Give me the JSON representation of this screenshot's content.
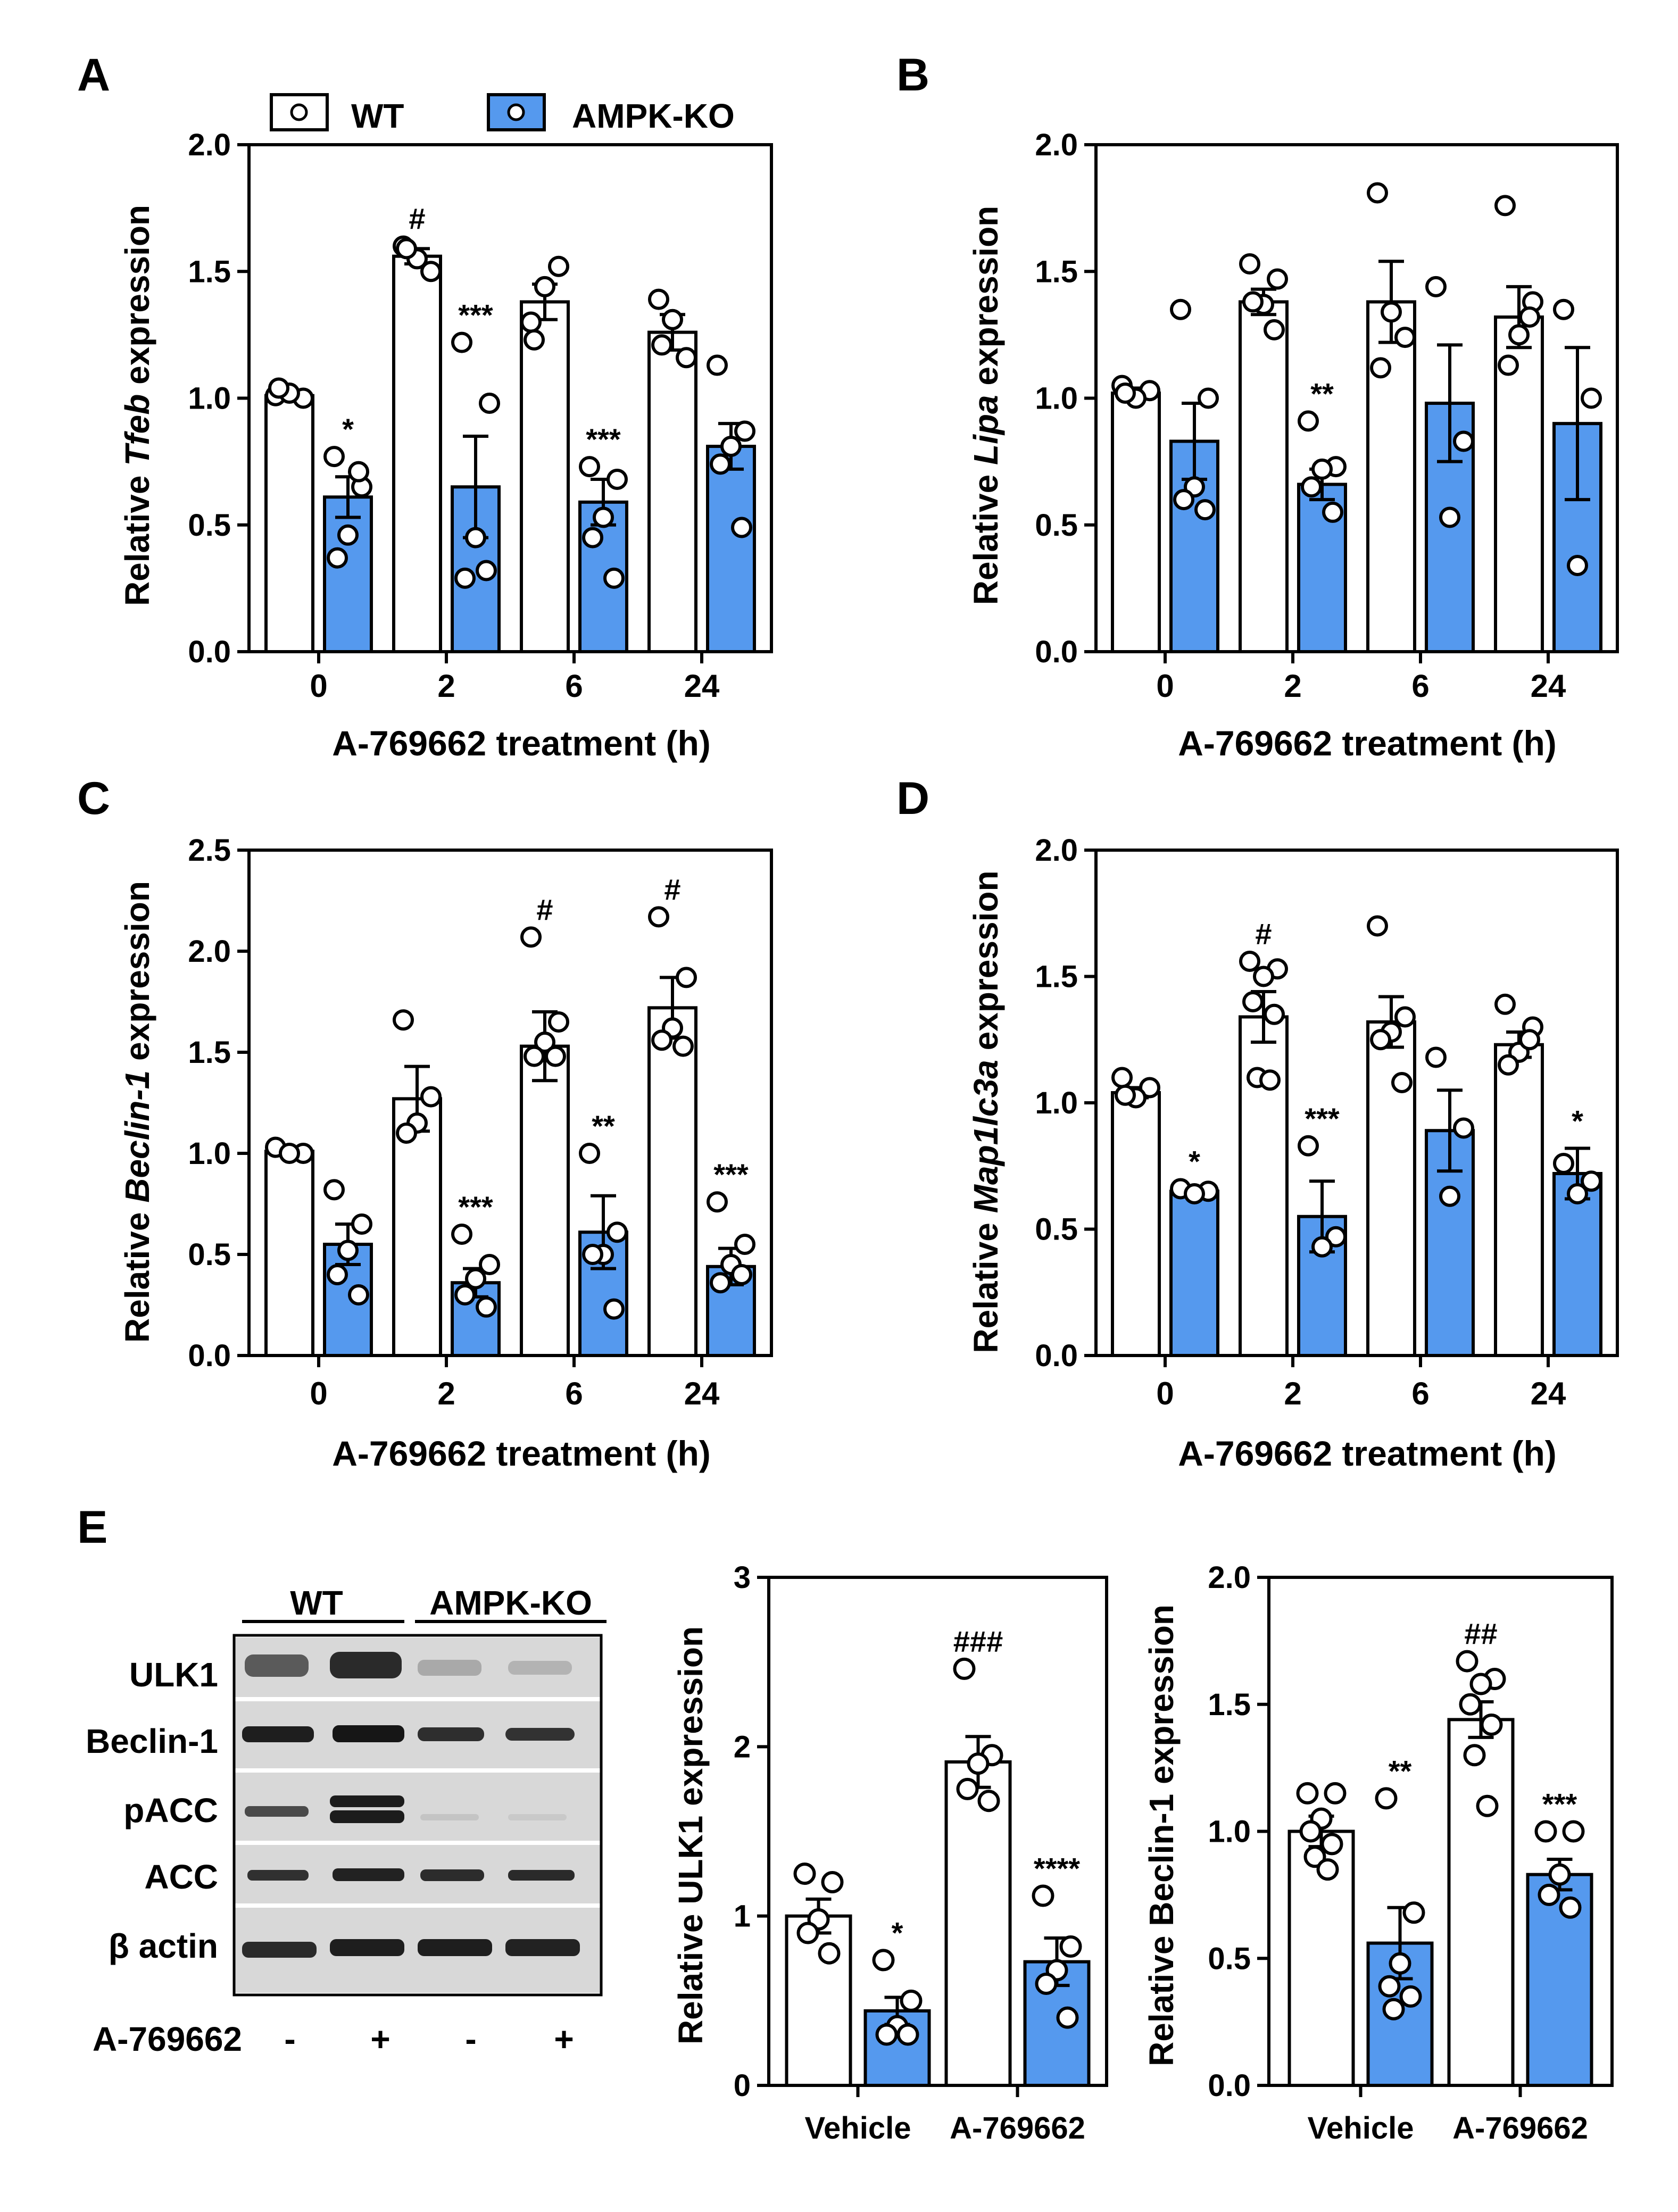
{
  "colors": {
    "wt_fill": "#ffffff",
    "ko_fill": "#5599ee",
    "stroke": "#000000"
  },
  "legend": {
    "wt": "WT",
    "ko": "AMPK-KO"
  },
  "panels": {
    "a": {
      "letter": "A",
      "ylabel_pre": "Relative ",
      "ylabel_gene": "Tfeb",
      "ylabel_post": " expression",
      "xlabel": "A-769662 treatment (h)"
    },
    "b": {
      "letter": "B",
      "ylabel_pre": "Relative ",
      "ylabel_gene": "Lipa",
      "ylabel_post": " expression",
      "xlabel": "A-769662 treatment (h)"
    },
    "c": {
      "letter": "C",
      "ylabel_pre": "Relative ",
      "ylabel_gene": "Beclin-1",
      "ylabel_post": " expression",
      "xlabel": "A-769662 treatment (h)"
    },
    "d": {
      "letter": "D",
      "ylabel_pre": "Relative ",
      "ylabel_gene": "Map1lc3a",
      "ylabel_post": " expression",
      "xlabel": "A-769662 treatment (h)"
    },
    "e": {
      "letter": "E"
    }
  },
  "western_blot": {
    "group_labels": [
      "WT",
      "AMPK-KO"
    ],
    "rows": [
      "ULK1",
      "Beclin-1",
      "pACC",
      "ACC",
      "β actin"
    ],
    "treatment_label": "A-769662",
    "treatment_signs": [
      "-",
      "+",
      "-",
      "+"
    ]
  },
  "chart_data": [
    {
      "panel": "A",
      "type": "bar",
      "ylabel": "Relative Tfeb expression",
      "xlabel": "A-769662 treatment (h)",
      "categories": [
        "0",
        "2",
        "6",
        "24"
      ],
      "ylim": [
        0,
        2.0
      ],
      "yticks": [
        "0.0",
        "0.5",
        "1.0",
        "1.5",
        "2.0"
      ],
      "series": [
        {
          "name": "WT",
          "values": [
            1.01,
            1.56,
            1.38,
            1.26
          ],
          "sem": [
            0.02,
            0.03,
            0.07,
            0.07
          ],
          "points": [
            [
              1.01,
              1.0,
              1.02,
              1.04
            ],
            [
              1.6,
              1.5,
              1.55,
              1.59
            ],
            [
              1.3,
              1.52,
              1.44,
              1.23
            ],
            [
              1.39,
              1.16,
              1.31,
              1.21
            ]
          ],
          "annotations": [
            "",
            "#",
            "",
            ""
          ]
        },
        {
          "name": "AMPK-KO",
          "values": [
            0.61,
            0.65,
            0.59,
            0.81
          ],
          "sem": [
            0.08,
            0.2,
            0.09,
            0.09
          ],
          "points": [
            [
              0.77,
              0.65,
              0.46,
              0.37,
              0.71
            ],
            [
              1.22,
              0.98,
              0.45,
              0.29,
              0.32
            ],
            [
              0.73,
              0.68,
              0.53,
              0.45,
              0.29
            ],
            [
              1.13,
              0.87,
              0.81,
              0.74,
              0.49
            ]
          ],
          "annotations": [
            "*",
            "***",
            "***",
            ""
          ]
        }
      ]
    },
    {
      "panel": "B",
      "type": "bar",
      "ylabel": "Relative Lipa expression",
      "xlabel": "A-769662 treatment (h)",
      "categories": [
        "0",
        "2",
        "6",
        "24"
      ],
      "ylim": [
        0,
        2.0
      ],
      "yticks": [
        "0.0",
        "0.5",
        "1.0",
        "1.5",
        "2.0"
      ],
      "series": [
        {
          "name": "WT",
          "values": [
            1.02,
            1.38,
            1.38,
            1.32
          ],
          "sem": [
            0.02,
            0.05,
            0.16,
            0.12
          ],
          "points": [
            [
              1.05,
              1.03,
              1.0,
              1.02
            ],
            [
              1.53,
              1.47,
              1.37,
              1.38,
              1.27
            ],
            [
              1.81,
              1.24,
              1.34,
              1.12
            ],
            [
              1.76,
              1.38,
              1.25,
              1.13,
              1.32
            ]
          ],
          "annotations": [
            "",
            "",
            "",
            ""
          ]
        },
        {
          "name": "AMPK-KO",
          "values": [
            0.83,
            0.66,
            0.98,
            0.9
          ],
          "sem": [
            0.15,
            0.06,
            0.23,
            0.3
          ],
          "points": [
            [
              1.35,
              1.0,
              0.65,
              0.6,
              0.56
            ],
            [
              0.91,
              0.73,
              0.72,
              0.65,
              0.55
            ],
            [
              1.44,
              0.83,
              0.53
            ],
            [
              1.35,
              1.0,
              0.34
            ]
          ],
          "annotations": [
            "",
            "**",
            "",
            ""
          ]
        }
      ]
    },
    {
      "panel": "C",
      "type": "bar",
      "ylabel": "Relative Beclin-1 expression",
      "xlabel": "A-769662 treatment (h)",
      "categories": [
        "0",
        "2",
        "6",
        "24"
      ],
      "ylim": [
        0,
        2.5
      ],
      "yticks": [
        "0.0",
        "0.5",
        "1.0",
        "1.5",
        "2.0",
        "2.5"
      ],
      "series": [
        {
          "name": "WT",
          "values": [
            1.01,
            1.27,
            1.53,
            1.72
          ],
          "sem": [
            0.02,
            0.16,
            0.17,
            0.15
          ],
          "points": [
            [
              1.03,
              1.0,
              1.0
            ],
            [
              1.66,
              1.28,
              1.15,
              1.1
            ],
            [
              2.07,
              1.65,
              1.55,
              1.48,
              1.48
            ],
            [
              2.17,
              1.87,
              1.62,
              1.56,
              1.53
            ]
          ],
          "annotations": [
            "",
            "",
            "#",
            "#"
          ]
        },
        {
          "name": "AMPK-KO",
          "values": [
            0.55,
            0.36,
            0.61,
            0.44
          ],
          "sem": [
            0.1,
            0.07,
            0.18,
            0.09
          ],
          "points": [
            [
              0.82,
              0.65,
              0.52,
              0.4,
              0.3
            ],
            [
              0.6,
              0.45,
              0.38,
              0.3,
              0.24
            ],
            [
              1.0,
              0.61,
              0.5,
              0.5,
              0.23
            ],
            [
              0.76,
              0.55,
              0.45,
              0.36,
              0.4
            ]
          ],
          "annotations": [
            "",
            "***",
            "**",
            "***"
          ]
        }
      ]
    },
    {
      "panel": "D",
      "type": "bar",
      "ylabel": "Relative Map1lc3a expression",
      "xlabel": "A-769662 treatment (h)",
      "categories": [
        "0",
        "2",
        "6",
        "24"
      ],
      "ylim": [
        0,
        2.0
      ],
      "yticks": [
        "0.0",
        "0.5",
        "1.0",
        "1.5",
        "2.0"
      ],
      "series": [
        {
          "name": "WT",
          "values": [
            1.04,
            1.34,
            1.32,
            1.23
          ],
          "sem": [
            0.02,
            0.1,
            0.1,
            0.05
          ],
          "points": [
            [
              1.1,
              1.06,
              1.02,
              1.03
            ],
            [
              1.56,
              1.53,
              1.5,
              1.4,
              1.35,
              1.1,
              1.09
            ],
            [
              1.7,
              1.34,
              1.28,
              1.25,
              1.08
            ],
            [
              1.39,
              1.3,
              1.2,
              1.15,
              1.25
            ]
          ],
          "annotations": [
            "",
            "#",
            "",
            ""
          ]
        },
        {
          "name": "AMPK-KO",
          "values": [
            0.65,
            0.55,
            0.89,
            0.72
          ],
          "sem": [
            0.01,
            0.14,
            0.16,
            0.1
          ],
          "points": [
            [
              0.66,
              0.65,
              0.64
            ],
            [
              0.83,
              0.47,
              0.43
            ],
            [
              1.18,
              0.9,
              0.63
            ],
            [
              0.76,
              0.69,
              0.64
            ]
          ],
          "annotations": [
            "*",
            "***",
            "",
            "*"
          ]
        }
      ]
    },
    {
      "panel": "E-ULK1",
      "type": "bar",
      "ylabel": "Relative ULK1 expression",
      "xlabel": "",
      "categories": [
        "Vehicle",
        "A-769662"
      ],
      "ylim": [
        0,
        3
      ],
      "yticks": [
        "0",
        "1",
        "2",
        "3"
      ],
      "series": [
        {
          "name": "WT",
          "values": [
            1.0,
            1.91
          ],
          "sem": [
            0.1,
            0.15
          ],
          "points": [
            [
              1.25,
              1.2,
              0.98,
              0.9,
              0.78
            ],
            [
              2.46,
              1.95,
              1.9,
              1.75,
              1.68
            ]
          ],
          "annotations": [
            "",
            "###"
          ]
        },
        {
          "name": "AMPK-KO",
          "values": [
            0.44,
            0.73
          ],
          "sem": [
            0.08,
            0.14
          ],
          "points": [
            [
              0.74,
              0.5,
              0.35,
              0.3,
              0.3
            ],
            [
              1.12,
              0.82,
              0.68,
              0.6,
              0.4
            ]
          ],
          "annotations": [
            "*",
            "****"
          ]
        }
      ]
    },
    {
      "panel": "E-Beclin-1",
      "type": "bar",
      "ylabel": "Relative Beclin-1 expression",
      "xlabel": "",
      "categories": [
        "Vehicle",
        "A-769662"
      ],
      "ylim": [
        0,
        2.0
      ],
      "yticks": [
        "0.0",
        "0.5",
        "1.0",
        "1.5",
        "2.0"
      ],
      "series": [
        {
          "name": "WT",
          "values": [
            1.0,
            1.44
          ],
          "sem": [
            0.06,
            0.07
          ],
          "points": [
            [
              1.15,
              1.15,
              1.05,
              1.0,
              0.95,
              0.9,
              0.85
            ],
            [
              1.67,
              1.6,
              1.58,
              1.5,
              1.42,
              1.3,
              1.1
            ]
          ],
          "annotations": [
            "",
            "##"
          ]
        },
        {
          "name": "AMPK-KO",
          "values": [
            0.56,
            0.83
          ],
          "sem": [
            0.14,
            0.06
          ],
          "points": [
            [
              1.13,
              0.68,
              0.48,
              0.39,
              0.35,
              0.3
            ],
            [
              1.0,
              1.0,
              0.83,
              0.75,
              0.7
            ]
          ],
          "annotations": [
            "**",
            "***"
          ]
        }
      ]
    }
  ]
}
